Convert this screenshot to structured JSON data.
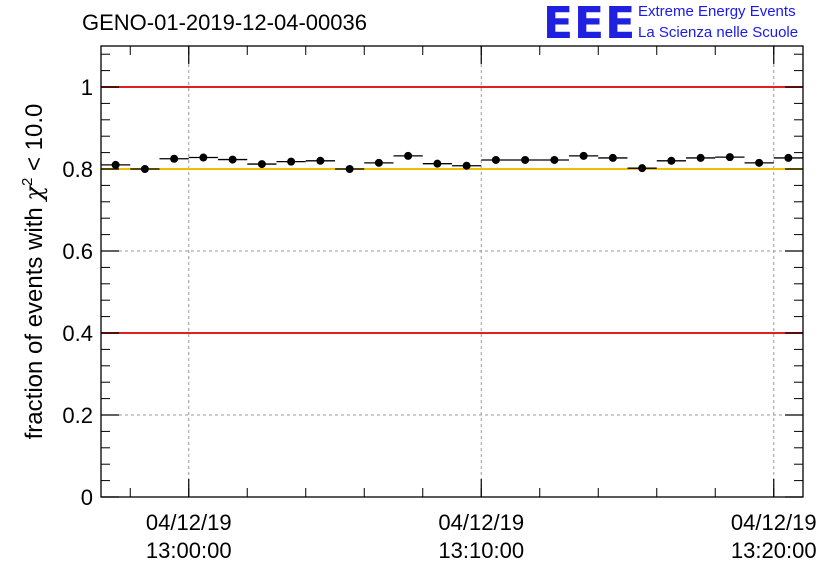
{
  "header": {
    "title": "GENO-01-2019-12-04-00036"
  },
  "logo": {
    "mark": "EEE",
    "line1": "Extreme Energy Events",
    "line2": "La Scienza nelle Scuole"
  },
  "chart_data": {
    "type": "scatter",
    "title": "GENO-01-2019-12-04-00036",
    "xlabel": "",
    "ylabel": "fraction of events with χ² < 10.0",
    "ylabel_main": "fraction of events with ",
    "ylabel_sym": "χ",
    "ylabel_sup": "2",
    "ylabel_tail": " < 10.0",
    "x_unit": "minutes after 12:57:00",
    "xlim": [
      0,
      24
    ],
    "ylim": [
      0,
      1.1
    ],
    "y_ticks": [
      0,
      0.2,
      0.4,
      0.6,
      0.8,
      1
    ],
    "y_tick_labels": [
      "0",
      "0.2",
      "0.4",
      "0.6",
      "0.8",
      "1"
    ],
    "x_ticks": [
      {
        "x": 3,
        "date": "04/12/19",
        "time": "13:00:00"
      },
      {
        "x": 13,
        "date": "04/12/19",
        "time": "13:10:00"
      },
      {
        "x": 23,
        "date": "04/12/19",
        "time": "13:20:00"
      }
    ],
    "grid": true,
    "reference_lines": [
      {
        "y": 1.0,
        "color": "#e02020"
      },
      {
        "y": 0.8,
        "color": "#f0c000"
      },
      {
        "y": 0.4,
        "color": "#e02020"
      }
    ],
    "series": [
      {
        "name": "fraction",
        "x": [
          0.5,
          1.5,
          2.5,
          3.5,
          4.5,
          5.5,
          6.5,
          7.5,
          8.5,
          9.5,
          10.5,
          11.5,
          12.5,
          13.5,
          14.5,
          15.5,
          16.5,
          17.5,
          18.5,
          19.5,
          20.5,
          21.5,
          22.5,
          23.5
        ],
        "y": [
          0.81,
          0.8,
          0.825,
          0.828,
          0.823,
          0.812,
          0.818,
          0.82,
          0.8,
          0.815,
          0.832,
          0.813,
          0.808,
          0.822,
          0.822,
          0.822,
          0.832,
          0.827,
          0.802,
          0.82,
          0.827,
          0.829,
          0.815,
          0.827
        ],
        "x_half_width": 0.5
      }
    ]
  }
}
